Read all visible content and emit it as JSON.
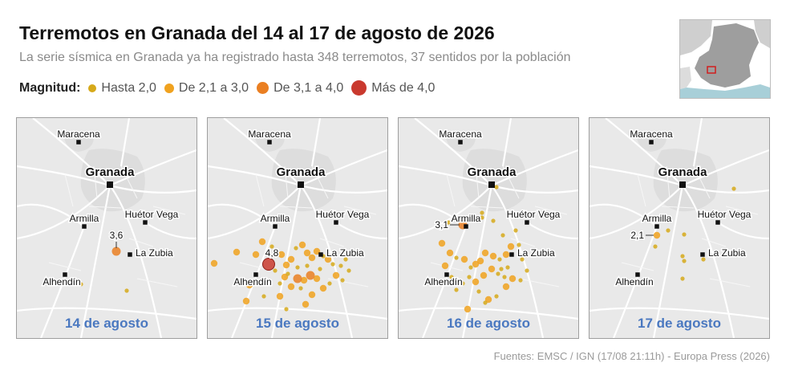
{
  "title": "Terremotos en Granada del 14 al 17 de agosto de 2026",
  "subtitle": "La serie sísmica en Granada ya ha registrado hasta 348 terremotos, 37 sentidos por la población",
  "legend": {
    "title": "Magnitud:",
    "items": [
      {
        "label": "Hasta 2,0",
        "color": "#d6a91a"
      },
      {
        "label": "De 2,1 a 3,0",
        "color": "#f0a21f"
      },
      {
        "label": "De 3,1 a 4,0",
        "color": "#ea7f22"
      },
      {
        "label": "Más de 4,0",
        "color": "#c9392e"
      }
    ]
  },
  "towns": {
    "maracena": "Maracena",
    "granada": "Granada",
    "armilla": "Armilla",
    "huetor": "Huétor Vega",
    "zubia": "La Zubia",
    "alhendin": "Alhendín"
  },
  "panels": [
    {
      "day": "14 de agosto",
      "annotation": {
        "label": "3,6",
        "magnitude": 3.6
      }
    },
    {
      "day": "15 de agosto",
      "annotation": {
        "label": "4,8",
        "magnitude": 4.8
      }
    },
    {
      "day": "16 de agosto",
      "annotation": {
        "label": "3,1",
        "magnitude": 3.1
      }
    },
    {
      "day": "17 de agosto",
      "annotation": {
        "label": "2,1",
        "magnitude": 2.1
      }
    }
  ],
  "source": "Fuentes: EMSC / IGN (17/08 21:11h) - Europa Press (2026)"
}
